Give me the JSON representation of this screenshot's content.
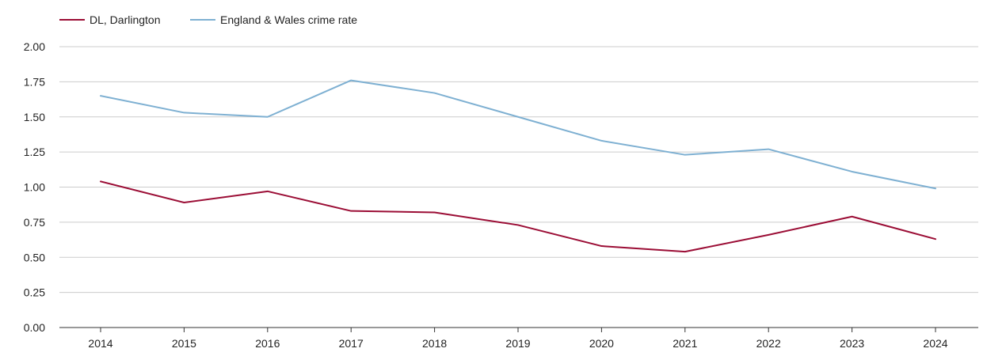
{
  "chart_data": {
    "type": "line",
    "title": "",
    "xlabel": "",
    "ylabel": "",
    "categories": [
      "2014",
      "2015",
      "2016",
      "2017",
      "2018",
      "2019",
      "2020",
      "2021",
      "2022",
      "2023",
      "2024"
    ],
    "ylim": [
      0,
      2
    ],
    "yticks": [
      "0.00",
      "0.25",
      "0.50",
      "0.75",
      "1.00",
      "1.25",
      "1.50",
      "1.75",
      "2.00"
    ],
    "grid": true,
    "legend_position": "top-left",
    "series": [
      {
        "name": "DL, Darlington",
        "color": "#9b0d35",
        "values": [
          1.04,
          0.89,
          0.97,
          0.83,
          0.82,
          0.73,
          0.58,
          0.54,
          0.66,
          0.79,
          0.63
        ]
      },
      {
        "name": "England & Wales crime rate",
        "color": "#7eb0d2",
        "values": [
          1.65,
          1.53,
          1.5,
          1.76,
          1.67,
          1.5,
          1.33,
          1.23,
          1.27,
          1.11,
          0.99
        ]
      }
    ]
  },
  "legend": {
    "items": [
      "DL, Darlington",
      "England & Wales crime rate"
    ]
  }
}
